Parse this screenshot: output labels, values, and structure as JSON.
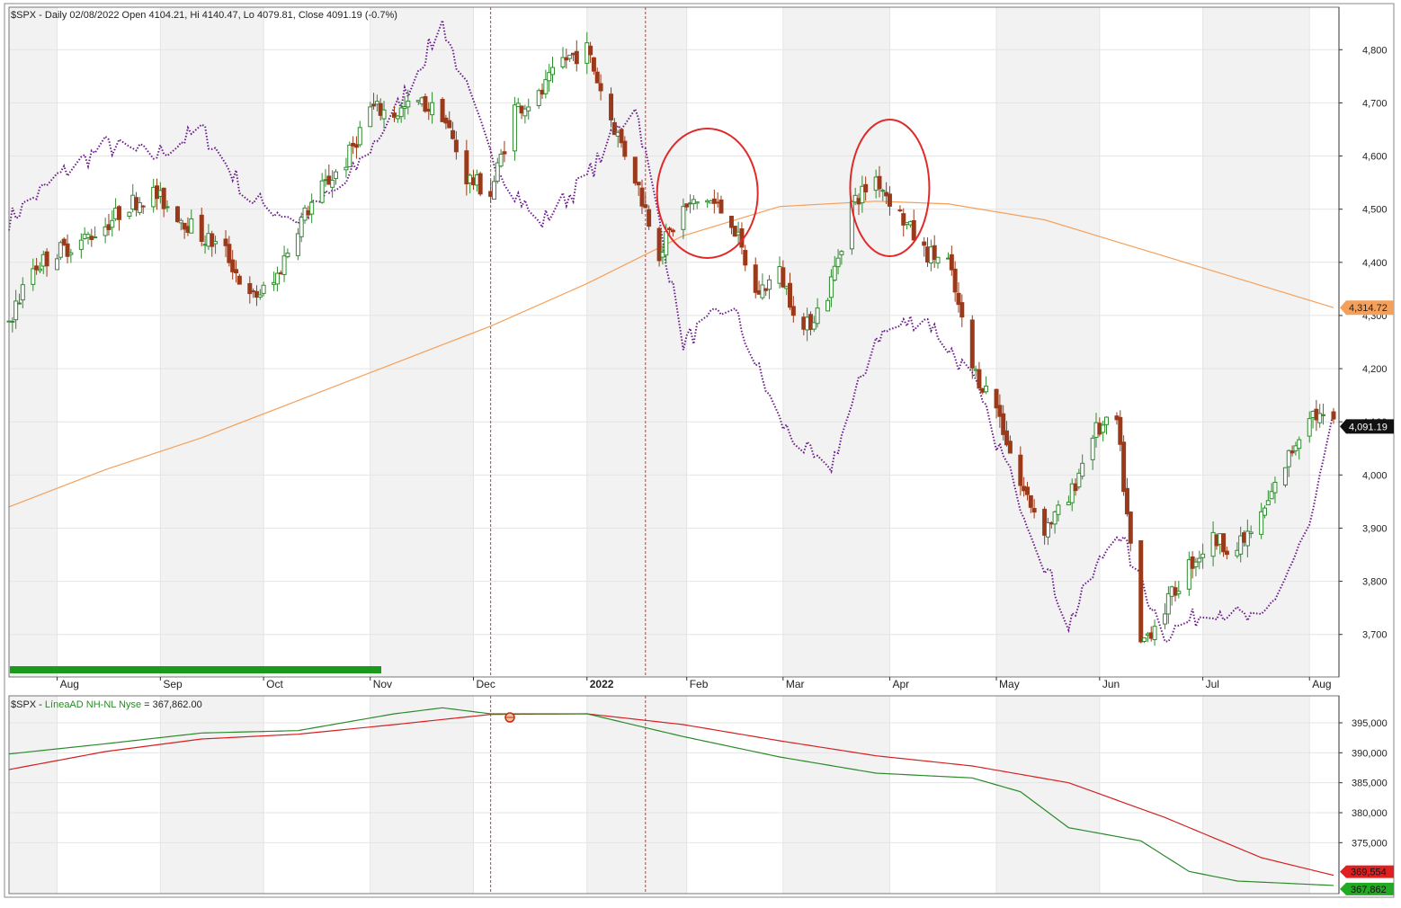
{
  "chart_data": [
    {
      "type": "candlestick",
      "title": "$SPX - Daily 02/08/2022 Open 4104.21, Hi 4140.47, Lo 4079.81, Close 4091.19 (-0.7%)",
      "x_axis_labels": [
        "Aug",
        "Sep",
        "Oct",
        "Nov",
        "Dec",
        "2022",
        "Feb",
        "Mar",
        "Apr",
        "May",
        "Jun",
        "Jul",
        "Aug"
      ],
      "y_ticks": [
        "4,800",
        "4,700",
        "4,600",
        "4,500",
        "4,400",
        "4,300",
        "4,200",
        "4,100",
        "4,000",
        "3,900",
        "3,800",
        "3,700"
      ],
      "ylim": [
        3620,
        4880
      ],
      "grid": true,
      "colors": {
        "up": "#2e8b2e",
        "down": "#9b3a1a",
        "ma": "#f5a05a",
        "overlay": "#6a1b8a",
        "vline": "#e03030",
        "circle": "#e02a2a"
      },
      "series": [
        {
          "name": "$SPX",
          "kind": "price-path",
          "x": [
            "2021-07-19",
            "2021-07-26",
            "2021-08-02",
            "2021-08-09",
            "2021-08-16",
            "2021-08-23",
            "2021-08-30",
            "2021-09-06",
            "2021-09-13",
            "2021-09-20",
            "2021-09-27",
            "2021-10-04",
            "2021-10-11",
            "2021-10-18",
            "2021-10-25",
            "2021-11-01",
            "2021-11-08",
            "2021-11-15",
            "2021-11-22",
            "2021-11-29",
            "2021-12-06",
            "2021-12-13",
            "2021-12-20",
            "2021-12-27",
            "2022-01-03",
            "2022-01-10",
            "2022-01-17",
            "2022-01-24",
            "2022-01-31",
            "2022-02-07",
            "2022-02-14",
            "2022-02-21",
            "2022-02-28",
            "2022-03-07",
            "2022-03-14",
            "2022-03-21",
            "2022-03-28",
            "2022-04-04",
            "2022-04-11",
            "2022-04-18",
            "2022-04-25",
            "2022-05-02",
            "2022-05-09",
            "2022-05-16",
            "2022-05-23",
            "2022-05-30",
            "2022-06-06",
            "2022-06-13",
            "2022-06-20",
            "2022-06-27",
            "2022-07-04",
            "2022-07-11",
            "2022-07-18",
            "2022-07-25",
            "2022-08-01",
            "2022-08-08"
          ],
          "values": [
            4290,
            4390,
            4420,
            4440,
            4470,
            4510,
            4530,
            4490,
            4450,
            4420,
            4330,
            4360,
            4470,
            4540,
            4590,
            4690,
            4680,
            4700,
            4680,
            4560,
            4530,
            4690,
            4710,
            4780,
            4800,
            4670,
            4560,
            4420,
            4500,
            4520,
            4480,
            4340,
            4380,
            4270,
            4340,
            4510,
            4560,
            4490,
            4420,
            4400,
            4200,
            4130,
            3980,
            3900,
            3950,
            4080,
            4100,
            3680,
            3750,
            3830,
            3880,
            3860,
            3920,
            4020,
            4120,
            4091.19
          ]
        },
        {
          "name": "MA",
          "kind": "moving-average",
          "x": [
            "2021-07-19",
            "2021-08-16",
            "2021-09-13",
            "2021-10-11",
            "2021-11-08",
            "2021-12-06",
            "2022-01-03",
            "2022-01-31",
            "2022-02-28",
            "2022-03-28",
            "2022-04-18",
            "2022-05-16",
            "2022-06-13",
            "2022-07-11",
            "2022-08-08"
          ],
          "values": [
            3940,
            4010,
            4070,
            4140,
            4210,
            4280,
            4360,
            4450,
            4505,
            4515,
            4510,
            4480,
            4425,
            4370,
            4314.72
          ],
          "last_label": "4,314.72"
        },
        {
          "name": "overlay",
          "kind": "dotted-overlay",
          "x": [
            "2021-07-19",
            "2021-08-02",
            "2021-08-16",
            "2021-08-30",
            "2021-09-13",
            "2021-09-27",
            "2021-10-11",
            "2021-10-25",
            "2021-11-08",
            "2021-11-22",
            "2021-12-06",
            "2021-12-20",
            "2022-01-03",
            "2022-01-17",
            "2022-01-31",
            "2022-02-14",
            "2022-02-28",
            "2022-03-14",
            "2022-03-28",
            "2022-04-11",
            "2022-04-25",
            "2022-05-09",
            "2022-05-23",
            "2022-06-06",
            "2022-06-20",
            "2022-07-04",
            "2022-07-18",
            "2022-08-01",
            "2022-08-08"
          ],
          "values": [
            4480,
            4560,
            4620,
            4600,
            4650,
            4520,
            4480,
            4550,
            4680,
            4850,
            4600,
            4470,
            4560,
            4700,
            4250,
            4320,
            4100,
            4000,
            4260,
            4300,
            4180,
            3950,
            3720,
            3900,
            3700,
            3750,
            3720,
            3900,
            4100
          ]
        }
      ],
      "last_value_label": "4,091.19",
      "annotations": [
        "circle Feb 2022",
        "circle Apr 2022",
        "vertical dashed line Dec 2021",
        "vertical dashed line Jan 2022"
      ]
    },
    {
      "type": "line",
      "title_prefix": "$SPX - ",
      "title_series": "LíneaAD NH-NL Nyse",
      "title_suffix": " = 367,862.00",
      "y_ticks": [
        "395,000",
        "390,000",
        "385,000",
        "380,000",
        "375,000"
      ],
      "ylim": [
        366500,
        399500
      ],
      "grid": true,
      "series": [
        {
          "name": "LíneaAD NH-NL Nyse",
          "color": "#2a8a2a",
          "x": [
            "2021-07-19",
            "2021-08-16",
            "2021-09-13",
            "2021-10-11",
            "2021-11-08",
            "2021-11-22",
            "2021-12-06",
            "2022-01-03",
            "2022-01-31",
            "2022-02-28",
            "2022-03-28",
            "2022-04-25",
            "2022-05-09",
            "2022-05-23",
            "2022-06-13",
            "2022-06-27",
            "2022-07-11",
            "2022-08-08"
          ],
          "values": [
            389800,
            391500,
            393300,
            393700,
            396500,
            397500,
            396500,
            396500,
            392700,
            389300,
            386600,
            385800,
            383500,
            377500,
            375300,
            370200,
            368600,
            367862
          ],
          "last_label": "367,862"
        },
        {
          "name": "signal",
          "color": "#d42020",
          "x": [
            "2021-07-19",
            "2021-08-16",
            "2021-09-13",
            "2021-10-11",
            "2021-11-08",
            "2021-12-06",
            "2022-01-03",
            "2022-01-31",
            "2022-02-28",
            "2022-03-28",
            "2022-04-25",
            "2022-05-23",
            "2022-06-20",
            "2022-07-18",
            "2022-08-08"
          ],
          "values": [
            387200,
            390200,
            392300,
            393100,
            394700,
            396400,
            396500,
            394700,
            392000,
            389500,
            387800,
            385000,
            379200,
            372500,
            369554
          ],
          "last_label": "369,554"
        }
      ]
    }
  ]
}
